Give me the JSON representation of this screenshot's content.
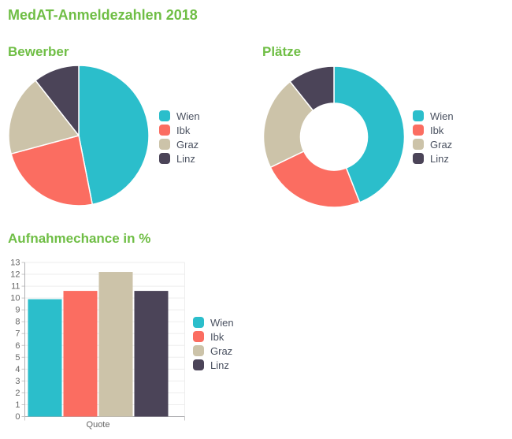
{
  "page": {
    "title": "MedAT-Anmeldezahlen 2018",
    "background": "#ffffff"
  },
  "palette": {
    "title_green": "#6fbe45",
    "legend_text": "#4a5160",
    "axis_text": "#666666",
    "grid_line": "#ededed",
    "axis_line": "#b0b0b3",
    "tick_line": "#c6c6c6",
    "slice_border": "#ffffff"
  },
  "series_labels": [
    "Wien",
    "Ibk",
    "Graz",
    "Linz"
  ],
  "series_colors": [
    "#2bbecb",
    "#fb6d61",
    "#ccc3a9",
    "#4b4458"
  ],
  "chart_data": [
    {
      "id": "bewerber",
      "type": "pie",
      "title": "Bewerber",
      "labels": [
        "Wien",
        "Ibk",
        "Graz",
        "Linz"
      ],
      "values_percent": [
        46.9,
        23.9,
        18.6,
        10.6
      ],
      "start_angle_deg": 0,
      "direction": "clockwise",
      "legend_position": "right"
    },
    {
      "id": "plaetze",
      "type": "pie",
      "subtype": "donut",
      "title": "Plätze",
      "labels": [
        "Wien",
        "Ibk",
        "Graz",
        "Linz"
      ],
      "values_percent": [
        44.0,
        23.8,
        21.4,
        10.7
      ],
      "inner_radius_ratio": 0.475,
      "start_angle_deg": 0,
      "direction": "clockwise",
      "legend_position": "right"
    },
    {
      "id": "aufnahmechance",
      "type": "bar",
      "title": "Aufnahmechance in %",
      "categories": [
        "Quote"
      ],
      "xlabel": "Quote",
      "ylabel": "",
      "ylim": [
        0,
        13
      ],
      "ytick_step": 1,
      "grid": true,
      "legend_position": "right",
      "series": [
        {
          "name": "Wien",
          "values": [
            9.9
          ]
        },
        {
          "name": "Ibk",
          "values": [
            10.6
          ]
        },
        {
          "name": "Graz",
          "values": [
            12.2
          ]
        },
        {
          "name": "Linz",
          "values": [
            10.6
          ]
        }
      ]
    }
  ]
}
